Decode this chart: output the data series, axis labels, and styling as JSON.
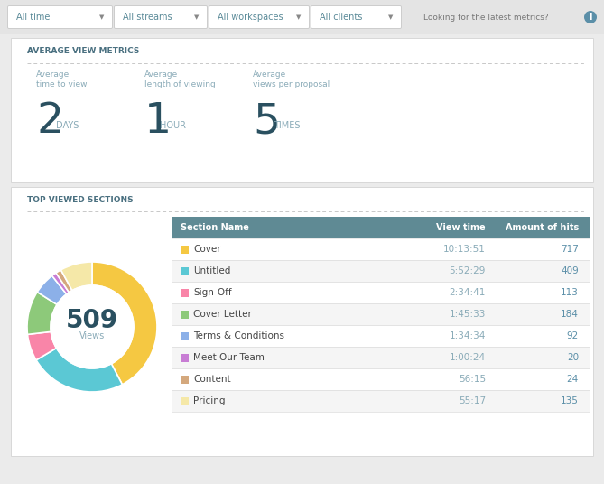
{
  "bg_color": "#ebebeb",
  "panel_color": "#ffffff",
  "toolbar_color": "#e4e4e4",
  "dropdowns": [
    "All time",
    "All streams",
    "All workspaces",
    "All clients"
  ],
  "looking_text": "Looking for the latest metrics?",
  "section1_title": "AVERAGE VIEW METRICS",
  "metrics": [
    {
      "label_line1": "Average",
      "label_line2": "time to view",
      "value": "2",
      "unit": "DAYS"
    },
    {
      "label_line1": "Average",
      "label_line2": "length of viewing",
      "value": "1",
      "unit": "HOUR"
    },
    {
      "label_line1": "Average",
      "label_line2": "views per proposal",
      "value": "5",
      "unit": "TIMES"
    }
  ],
  "section2_title": "TOP VIEWED SECTIONS",
  "donut_total": "509",
  "donut_label": "Views",
  "donut_slices": [
    717,
    409,
    113,
    184,
    92,
    20,
    24,
    135
  ],
  "donut_colors": [
    "#f5c842",
    "#5bc8d4",
    "#f985a8",
    "#8dc97a",
    "#8cb0e8",
    "#c87dd4",
    "#d4a87d",
    "#f5e8a8"
  ],
  "table_header": [
    "Section Name",
    "View time",
    "Amount of hits"
  ],
  "table_header_bg": "#5f8a94",
  "table_header_color": "#ffffff",
  "table_rows": [
    {
      "name": "Cover",
      "view_time": "10:13:51",
      "hits": "717",
      "color": "#f5c842"
    },
    {
      "name": "Untitled",
      "view_time": "5:52:29",
      "hits": "409",
      "color": "#5bc8d4"
    },
    {
      "name": "Sign-Off",
      "view_time": "2:34:41",
      "hits": "113",
      "color": "#f985a8"
    },
    {
      "name": "Cover Letter",
      "view_time": "1:45:33",
      "hits": "184",
      "color": "#8dc97a"
    },
    {
      "name": "Terms & Conditions",
      "view_time": "1:34:34",
      "hits": "92",
      "color": "#8cb0e8"
    },
    {
      "name": "Meet Our Team",
      "view_time": "1:00:24",
      "hits": "20",
      "color": "#c87dd4"
    },
    {
      "name": "Content",
      "view_time": "56:15",
      "hits": "24",
      "color": "#d4a87d"
    },
    {
      "name": "Pricing",
      "view_time": "55:17",
      "hits": "135",
      "color": "#f5e8a8"
    }
  ],
  "row_alt_color": "#f5f5f5",
  "row_color": "#ffffff",
  "text_dark": "#4a7080",
  "text_medium": "#8aabb8",
  "metric_value_color": "#2a5060",
  "metric_unit_color": "#8aabb8",
  "hit_color": "#5b8fa8",
  "border_color": "#d8d8d8",
  "dash_color": "#c8c8c8"
}
